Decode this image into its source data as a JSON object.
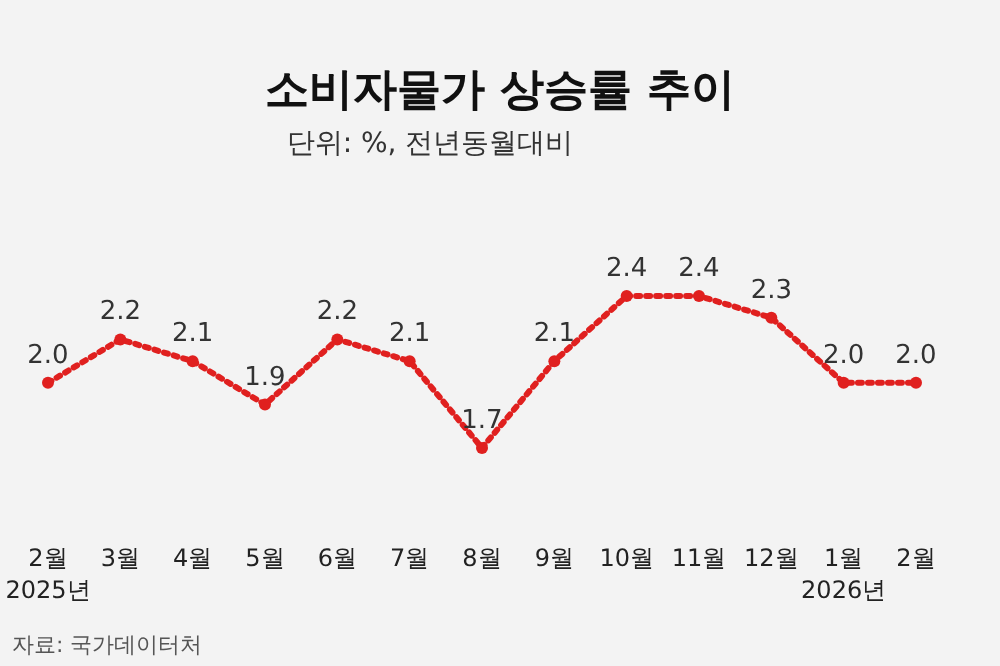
{
  "chart_data": {
    "type": "line",
    "title": "소비자물가 상승률 추이",
    "subtitle": "단위: %, 전년동월대비",
    "categories": [
      "2월\n2025년",
      "3월",
      "4월",
      "5월",
      "6월",
      "7월",
      "8월",
      "9월",
      "10월",
      "11월",
      "12월",
      "1월\n2026년",
      "2월"
    ],
    "series": [
      {
        "color": "#e0201f",
        "values": [
          2.0,
          2.2,
          2.1,
          1.9,
          2.2,
          2.1,
          1.7,
          2.1,
          2.4,
          2.4,
          2.3,
          2.0,
          2.0
        ],
        "value_labels": [
          "2.0",
          "2.2",
          "2.1",
          "1.9",
          "2.2",
          "2.1",
          "1.7",
          "2.1",
          "2.4",
          "2.4",
          "2.3",
          "2.0",
          "2.0"
        ]
      }
    ],
    "marker": "circle",
    "line_style": "dotted",
    "annotations": [
      "자료: 국가데이터처"
    ]
  }
}
